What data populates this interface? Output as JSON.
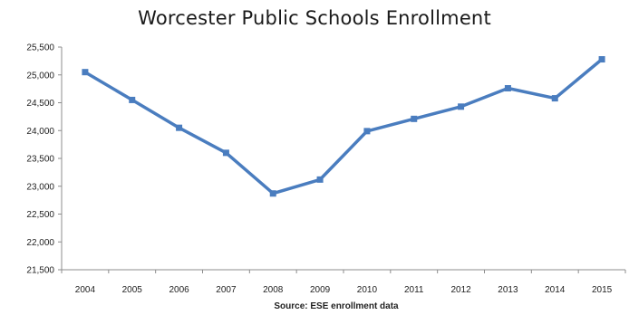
{
  "chart_data": {
    "type": "line",
    "title": "Worcester Public Schools Enrollment",
    "xlabel": "Source: ESE enrollment data",
    "ylabel": "",
    "categories": [
      "2004",
      "2005",
      "2006",
      "2007",
      "2008",
      "2009",
      "2010",
      "2011",
      "2012",
      "2013",
      "2014",
      "2015"
    ],
    "series": [
      {
        "values": [
          25050,
          24550,
          24050,
          23600,
          22870,
          23120,
          23990,
          24210,
          24430,
          24760,
          24580,
          25280
        ]
      }
    ],
    "ylim": [
      21500,
      25500
    ],
    "yticks": [
      21500,
      22000,
      22500,
      23000,
      23500,
      24000,
      24500,
      25000,
      25500
    ],
    "ytick_labels": [
      "21,500",
      "22,000",
      "22,500",
      "23,000",
      "23,500",
      "24,000",
      "24,500",
      "25,000",
      "25,500"
    ],
    "grid": false,
    "legend": "none",
    "line_color": "#4a7dbf"
  }
}
